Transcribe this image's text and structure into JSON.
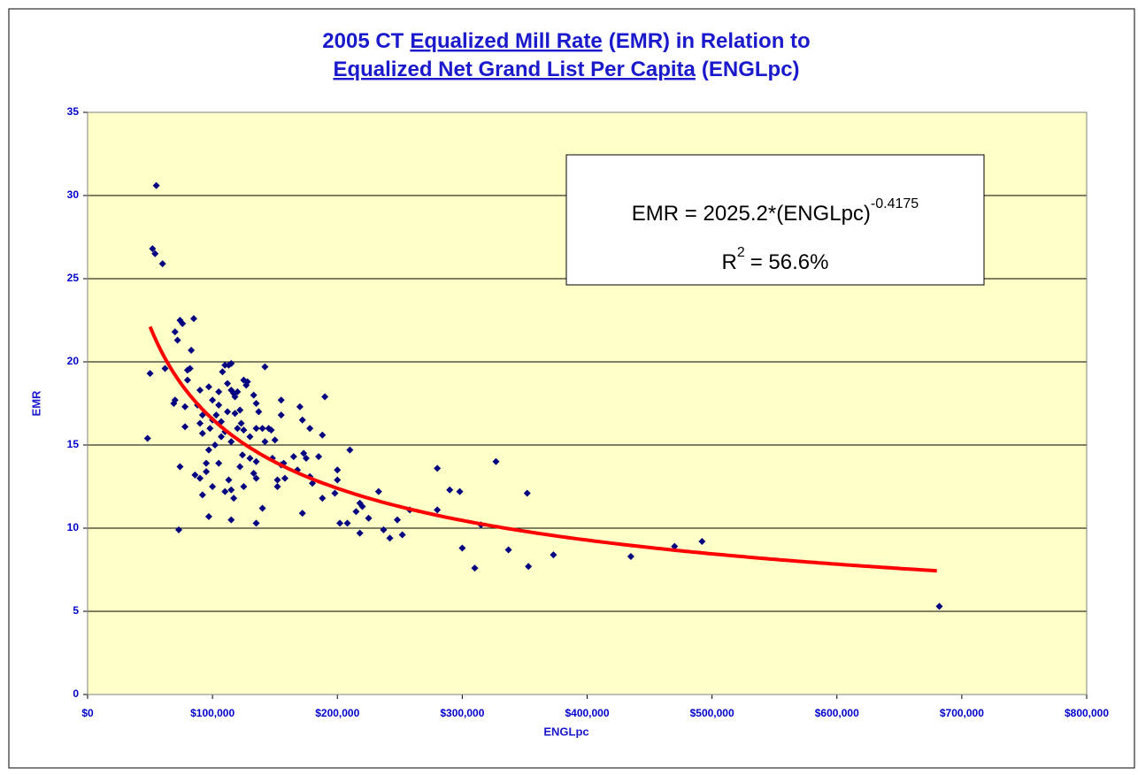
{
  "chart_data": {
    "type": "scatter",
    "title_lines": [
      [
        {
          "text": "2005 CT"
        },
        {
          "text": "Equalized Mill Rate",
          "underline": true
        },
        {
          "text": "(EMR) in Relation to"
        }
      ],
      [
        {
          "text": "Equalized Net Grand List Per Capita",
          "underline": true
        },
        {
          "text": "(ENGLpc)"
        }
      ]
    ],
    "x_label": "ENGLpc",
    "y_label": "EMR",
    "annotation": {
      "equation": "EMR = 2025.2*(ENGLpc)",
      "equation_exponent": "-0.4175",
      "r2_base": "R",
      "r2_exponent": "2",
      "r2_value": "= 56.6%"
    },
    "trendline": {
      "coefficient": 2025.2,
      "exponent": -0.4175,
      "x_from": 50000,
      "x_to": 680000,
      "color": "#ff0000"
    },
    "color": "#000080",
    "background": "#ffffc8",
    "grid": true,
    "xlim": [
      0,
      800000
    ],
    "xticks": [
      {
        "value": 0,
        "label": "$0"
      },
      {
        "value": 100000,
        "label": "$100,000"
      },
      {
        "value": 200000,
        "label": "$200,000"
      },
      {
        "value": 300000,
        "label": "$300,000"
      },
      {
        "value": 400000,
        "label": "$400,000"
      },
      {
        "value": 500000,
        "label": "$500,000"
      },
      {
        "value": 600000,
        "label": "$600,000"
      },
      {
        "value": 700000,
        "label": "$700,000"
      },
      {
        "value": 800000,
        "label": "$800,000"
      }
    ],
    "ylim": [
      0,
      35
    ],
    "yticks": [
      0,
      5,
      10,
      15,
      20,
      25,
      30,
      35
    ],
    "x": [
      55000,
      52000,
      54000,
      60000,
      50000,
      48000,
      62000,
      70000,
      74000,
      76000,
      72000,
      85000,
      83000,
      80000,
      82000,
      80000,
      70000,
      69000,
      78000,
      78000,
      74000,
      73000,
      88000,
      90000,
      92000,
      90000,
      92000,
      86000,
      90000,
      92000,
      95000,
      95000,
      97000,
      97000,
      100000,
      100000,
      98000,
      97000,
      100000,
      102000,
      103000,
      105000,
      105000,
      108000,
      110000,
      107000,
      105000,
      107000,
      110000,
      112000,
      113000,
      115000,
      115000,
      117000,
      118000,
      112000,
      118000,
      120000,
      122000,
      120000,
      115000,
      113000,
      115000,
      110000,
      117000,
      115000,
      125000,
      128000,
      127000,
      125000,
      123000,
      124000,
      122000,
      125000,
      130000,
      130000,
      133000,
      135000,
      137000,
      135000,
      140000,
      142000,
      135000,
      135000,
      133000,
      135000,
      140000,
      142000,
      145000,
      147000,
      148000,
      150000,
      152000,
      152000,
      155000,
      155000,
      157000,
      158000,
      155000,
      165000,
      168000,
      170000,
      172000,
      173000,
      175000,
      172000,
      178000,
      178000,
      180000,
      185000,
      188000,
      188000,
      190000,
      198000,
      200000,
      200000,
      202000,
      208000,
      210000,
      215000,
      218000,
      218000,
      220000,
      225000,
      233000,
      237000,
      242000,
      248000,
      252000,
      258000,
      280000,
      280000,
      290000,
      298000,
      300000,
      310000,
      315000,
      327000,
      337000,
      352000,
      353000,
      373000,
      435000,
      470000,
      492000,
      682000
    ],
    "values": [
      30.6,
      26.8,
      26.5,
      25.9,
      19.3,
      15.4,
      19.6,
      21.8,
      22.5,
      22.3,
      21.3,
      22.6,
      20.7,
      19.5,
      19.6,
      18.9,
      17.7,
      17.5,
      17.3,
      16.1,
      13.7,
      9.9,
      17.4,
      18.3,
      16.8,
      16.3,
      15.7,
      13.2,
      13.0,
      12.0,
      13.4,
      13.9,
      10.7,
      18.5,
      17.7,
      16.5,
      16.0,
      14.7,
      12.5,
      15.0,
      16.8,
      18.2,
      17.4,
      19.4,
      19.8,
      16.4,
      13.9,
      15.5,
      15.8,
      18.7,
      19.8,
      19.9,
      18.3,
      18.1,
      17.9,
      17.0,
      16.9,
      18.2,
      17.1,
      16.0,
      15.2,
      12.9,
      12.3,
      12.2,
      11.8,
      10.5,
      18.9,
      18.8,
      18.6,
      15.9,
      16.3,
      14.4,
      13.7,
      12.5,
      15.5,
      14.2,
      18.0,
      17.5,
      17.0,
      16.0,
      16.0,
      15.2,
      14.0,
      13.0,
      13.3,
      10.3,
      11.2,
      19.7,
      16.0,
      15.9,
      14.2,
      15.3,
      12.9,
      12.5,
      17.7,
      16.8,
      13.9,
      13.0,
      13.8,
      14.3,
      13.5,
      17.3,
      16.5,
      14.5,
      14.2,
      10.9,
      16.0,
      13.1,
      12.7,
      14.3,
      15.6,
      11.8,
      17.9,
      12.1,
      13.5,
      12.9,
      10.3,
      10.3,
      14.7,
      11.0,
      11.5,
      9.7,
      11.3,
      10.6,
      12.2,
      9.9,
      9.4,
      10.5,
      9.6,
      11.1,
      13.6,
      11.1,
      12.3,
      12.2,
      8.8,
      7.6,
      10.2,
      14.0,
      8.7,
      12.1,
      7.7,
      8.4,
      8.3,
      8.9,
      9.2,
      5.3
    ]
  }
}
